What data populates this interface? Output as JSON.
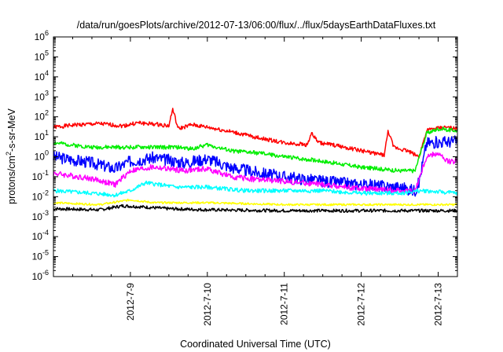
{
  "chart_data": {
    "type": "line",
    "title": "/data/run/goesPlots/archive/2012-07-13/06:00/flux/../flux/5daysEarthDataFluxes.txt",
    "xlabel": "Coordinated Universal Time (UTC)",
    "ylabel": {
      "pre": "protons/cm",
      "sup": "2",
      "post": "-s-sr-MeV"
    },
    "yscale": "log",
    "ylim_exp": [
      -6,
      6
    ],
    "xlim_days": [
      0,
      5.25
    ],
    "xticks": [
      {
        "day": 1,
        "label": "2012-7-9"
      },
      {
        "day": 2,
        "label": "2012-7-10"
      },
      {
        "day": 3,
        "label": "2012-7-11"
      },
      {
        "day": 4,
        "label": "2012-7-12"
      },
      {
        "day": 5,
        "label": "2012-7-13"
      }
    ],
    "grid": false,
    "legend": "none",
    "series": [
      {
        "color": "#ff0000",
        "noise": 0.1,
        "seed": 1,
        "points": [
          [
            0,
            30
          ],
          [
            0.3,
            40
          ],
          [
            0.6,
            45
          ],
          [
            0.9,
            35
          ],
          [
            1.1,
            50
          ],
          [
            1.4,
            40
          ],
          [
            1.5,
            35
          ],
          [
            1.55,
            250
          ],
          [
            1.62,
            25
          ],
          [
            1.8,
            40
          ],
          [
            2.0,
            30
          ],
          [
            2.3,
            18
          ],
          [
            2.6,
            10
          ],
          [
            3.0,
            5
          ],
          [
            3.3,
            4
          ],
          [
            3.35,
            15
          ],
          [
            3.45,
            5
          ],
          [
            3.7,
            3.5
          ],
          [
            4.0,
            2
          ],
          [
            4.3,
            1.2
          ],
          [
            4.35,
            20
          ],
          [
            4.42,
            3
          ],
          [
            4.6,
            2
          ],
          [
            4.75,
            1
          ],
          [
            4.85,
            20
          ],
          [
            4.95,
            25
          ],
          [
            5.1,
            30
          ],
          [
            5.25,
            25
          ]
        ]
      },
      {
        "color": "#00ee00",
        "noise": 0.1,
        "seed": 2,
        "points": [
          [
            0,
            5
          ],
          [
            0.5,
            3
          ],
          [
            1.0,
            3
          ],
          [
            1.3,
            3
          ],
          [
            1.6,
            3
          ],
          [
            1.8,
            2.5
          ],
          [
            2.0,
            4
          ],
          [
            2.3,
            2
          ],
          [
            2.7,
            1.5
          ],
          [
            3.0,
            1
          ],
          [
            3.5,
            0.6
          ],
          [
            4.0,
            0.3
          ],
          [
            4.5,
            0.2
          ],
          [
            4.7,
            0.2
          ],
          [
            4.85,
            15
          ],
          [
            5.0,
            25
          ],
          [
            5.25,
            20
          ]
        ]
      },
      {
        "color": "#0000ff",
        "noise": 0.3,
        "seed": 3,
        "points": [
          [
            0,
            1
          ],
          [
            0.5,
            0.5
          ],
          [
            0.8,
            0.25
          ],
          [
            1.0,
            0.6
          ],
          [
            1.3,
            0.9
          ],
          [
            1.7,
            0.5
          ],
          [
            2.0,
            0.8
          ],
          [
            2.3,
            0.3
          ],
          [
            2.7,
            0.15
          ],
          [
            3.0,
            0.1
          ],
          [
            3.5,
            0.06
          ],
          [
            4.0,
            0.04
          ],
          [
            4.5,
            0.03
          ],
          [
            4.7,
            0.02
          ],
          [
            4.75,
            0.05
          ],
          [
            4.85,
            5
          ],
          [
            5.25,
            6
          ]
        ]
      },
      {
        "color": "#ff00ff",
        "noise": 0.14,
        "seed": 4,
        "points": [
          [
            0,
            0.15
          ],
          [
            0.5,
            0.08
          ],
          [
            0.8,
            0.04
          ],
          [
            1.0,
            0.2
          ],
          [
            1.3,
            0.3
          ],
          [
            1.7,
            0.2
          ],
          [
            2.0,
            0.25
          ],
          [
            2.3,
            0.1
          ],
          [
            2.7,
            0.07
          ],
          [
            3.0,
            0.06
          ],
          [
            3.5,
            0.04
          ],
          [
            4.0,
            0.025
          ],
          [
            4.5,
            0.02
          ],
          [
            4.7,
            0.02
          ],
          [
            4.85,
            1
          ],
          [
            5.0,
            1.5
          ],
          [
            5.1,
            0.6
          ],
          [
            5.25,
            0.6
          ]
        ]
      },
      {
        "color": "#00ffff",
        "noise": 0.1,
        "seed": 5,
        "points": [
          [
            0,
            0.02
          ],
          [
            0.5,
            0.015
          ],
          [
            0.8,
            0.012
          ],
          [
            1.0,
            0.02
          ],
          [
            1.2,
            0.05
          ],
          [
            1.6,
            0.03
          ],
          [
            2.0,
            0.03
          ],
          [
            2.5,
            0.02
          ],
          [
            3.0,
            0.02
          ],
          [
            3.5,
            0.02
          ],
          [
            4.0,
            0.015
          ],
          [
            4.5,
            0.015
          ],
          [
            4.8,
            0.02
          ],
          [
            5.25,
            0.015
          ]
        ]
      },
      {
        "color": "#ffff00",
        "noise": 0.05,
        "seed": 6,
        "points": [
          [
            0,
            0.005
          ],
          [
            0.6,
            0.004
          ],
          [
            1.0,
            0.007
          ],
          [
            1.3,
            0.005
          ],
          [
            2.0,
            0.005
          ],
          [
            3.0,
            0.004
          ],
          [
            4.0,
            0.004
          ],
          [
            5.25,
            0.004
          ]
        ]
      },
      {
        "color": "#000000",
        "noise": 0.08,
        "seed": 7,
        "points": [
          [
            0,
            0.0025
          ],
          [
            0.6,
            0.0022
          ],
          [
            0.9,
            0.0035
          ],
          [
            1.2,
            0.003
          ],
          [
            1.5,
            0.0025
          ],
          [
            2.0,
            0.0022
          ],
          [
            3.0,
            0.002
          ],
          [
            4.0,
            0.002
          ],
          [
            5.25,
            0.002
          ]
        ]
      }
    ]
  }
}
